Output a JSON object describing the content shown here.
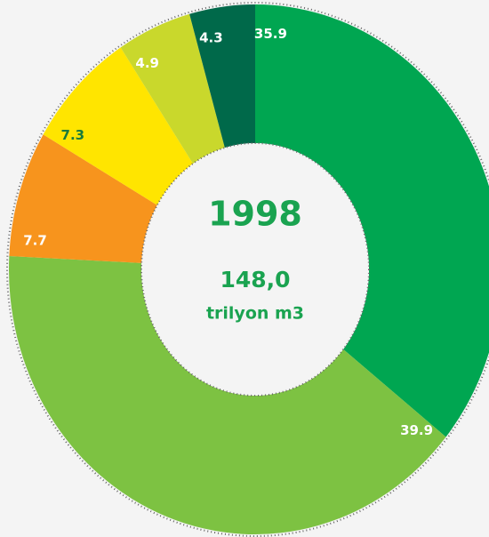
{
  "chart_data": {
    "type": "donut",
    "title": "1998",
    "subtitle": "148,0",
    "unit": "trilyon m3",
    "categories": [
      null,
      null,
      null,
      null,
      null,
      null
    ],
    "values": [
      35.9,
      39.9,
      7.7,
      7.3,
      4.9,
      4.3
    ],
    "colors": [
      "#00a651",
      "#7dc242",
      "#f7941d",
      "#ffe500",
      "#c9d82c",
      "#00694a"
    ],
    "label_colors": [
      "#ffffff",
      "#ffffff",
      "#ffffff",
      "#1a7a3c",
      "#ffffff",
      "#ffffff"
    ]
  }
}
